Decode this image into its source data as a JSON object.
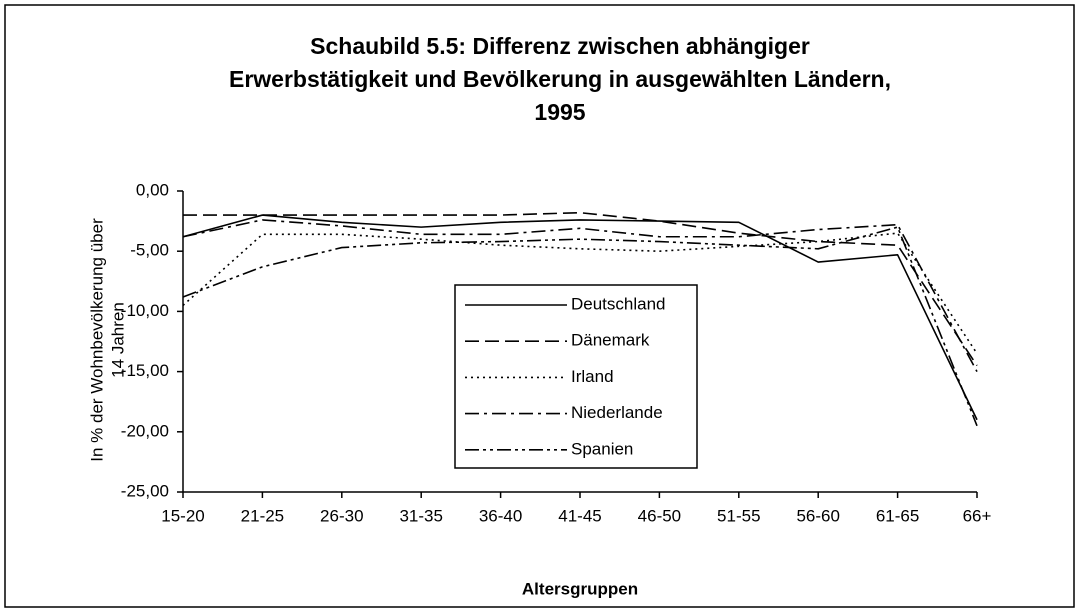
{
  "chart_data": {
    "type": "line",
    "title": [
      "Schaubild 5.5: Differenz zwischen abhängiger",
      "Erwerbstätigkeit und Bevölkerung in ausgewählten Ländern,",
      "1995"
    ],
    "x_label": "Altersgruppen",
    "y_label": [
      "In % der Wohnbevölkerung über",
      "14 Jahren"
    ],
    "categories": [
      "15-20",
      "21-25",
      "26-30",
      "31-35",
      "36-40",
      "41-45",
      "46-50",
      "51-55",
      "56-60",
      "61-65",
      "66+"
    ],
    "ylim": [
      -25,
      0
    ],
    "yticks": [
      {
        "value": 0,
        "label": "0,00"
      },
      {
        "value": -5,
        "label": "-5,00"
      },
      {
        "value": -10,
        "label": "-10,00"
      },
      {
        "value": -15,
        "label": "-15,00"
      },
      {
        "value": -20,
        "label": "-20,00"
      },
      {
        "value": -25,
        "label": "-25,00"
      }
    ],
    "series": [
      {
        "name": "Deutschland",
        "color": "#000000",
        "values": [
          -3.8,
          -2.0,
          -2.6,
          -3.0,
          -2.6,
          -2.4,
          -2.5,
          -2.6,
          -5.9,
          -5.3,
          -19.0
        ]
      },
      {
        "name": "Dänemark",
        "color": "#000000",
        "values": [
          -2.0,
          -2.0,
          -2.0,
          -2.0,
          -2.0,
          -1.8,
          -2.5,
          -3.5,
          -4.2,
          -4.5,
          -14.5
        ]
      },
      {
        "name": "Irland",
        "color": "#000000",
        "values": [
          -9.5,
          -3.6,
          -3.6,
          -4.0,
          -4.5,
          -4.8,
          -5.0,
          -4.6,
          -4.2,
          -3.5,
          -13.5
        ]
      },
      {
        "name": "Niederlande",
        "color": "#000000",
        "values": [
          -3.8,
          -2.4,
          -2.9,
          -3.6,
          -3.6,
          -3.1,
          -3.8,
          -3.8,
          -3.2,
          -2.8,
          -15.0
        ]
      },
      {
        "name": "Spanien",
        "color": "#000000",
        "values": [
          -8.8,
          -6.3,
          -4.7,
          -4.3,
          -4.2,
          -4.0,
          -4.2,
          -4.5,
          -4.8,
          -3.0,
          -19.5
        ]
      }
    ],
    "legend": "center"
  }
}
